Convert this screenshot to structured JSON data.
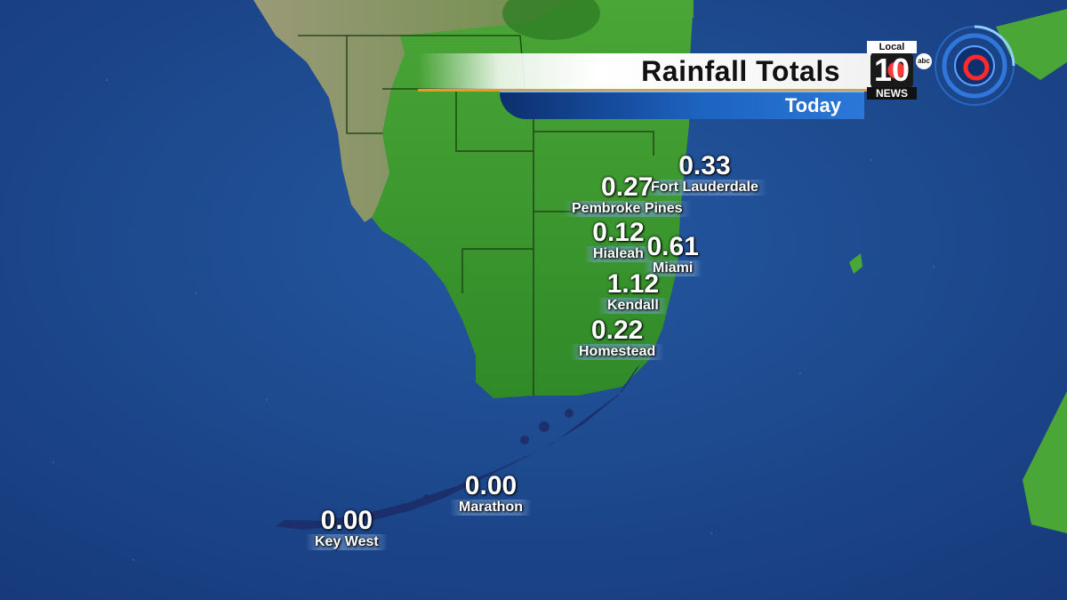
{
  "header": {
    "title": "Rainfall Totals",
    "subtitle": "Today"
  },
  "logo": {
    "local": "Local",
    "number": "10",
    "news": "NEWS",
    "network": "abc"
  },
  "colors": {
    "ocean": "#1c4a8c",
    "land": "#3a9a2a",
    "title_accent": "#e0a020",
    "subtitle_bar": "#1d63c0"
  },
  "icons": {
    "radar": "radar-icon"
  },
  "stations": [
    {
      "id": "fort-lauderdale",
      "value": "0.33",
      "name": "Fort Lauderdale"
    },
    {
      "id": "pembroke-pines",
      "value": "0.27",
      "name": "Pembroke Pines"
    },
    {
      "id": "hialeah",
      "value": "0.12",
      "name": "Hialeah"
    },
    {
      "id": "miami",
      "value": "0.61",
      "name": "Miami"
    },
    {
      "id": "kendall",
      "value": "1.12",
      "name": "Kendall"
    },
    {
      "id": "homestead",
      "value": "0.22",
      "name": "Homestead"
    },
    {
      "id": "marathon",
      "value": "0.00",
      "name": "Marathon"
    },
    {
      "id": "key-west",
      "value": "0.00",
      "name": "Key West"
    }
  ]
}
